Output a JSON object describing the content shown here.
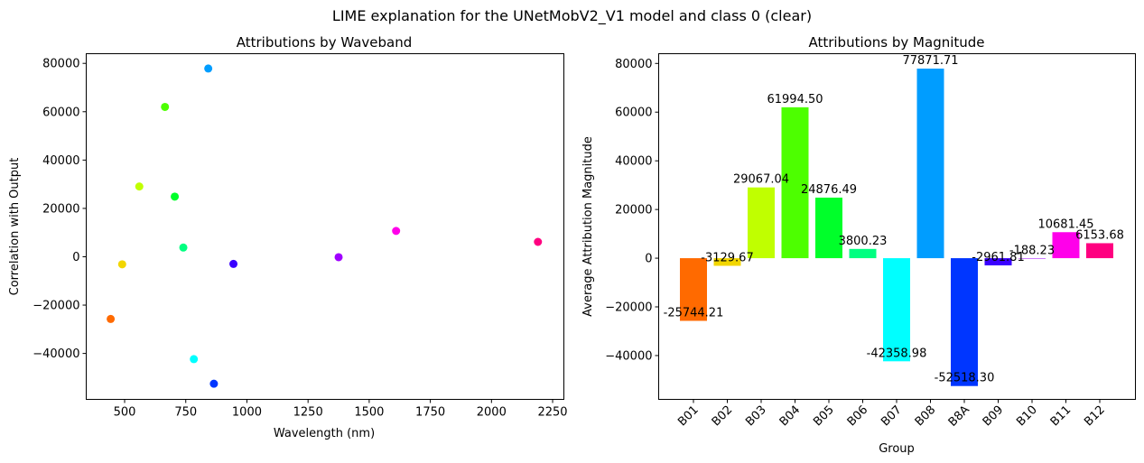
{
  "suptitle": "LIME explanation for the UNetMobV2_V1 model and class 0 (clear)",
  "chart_data": [
    {
      "type": "scatter",
      "title": "Attributions by Waveband",
      "xlabel": "Wavelength (nm)",
      "ylabel": "Correlation with Output",
      "xlim": [
        343,
        2296
      ],
      "ylim": [
        -59000,
        84000
      ],
      "xticks": [
        500,
        750,
        1000,
        1250,
        1500,
        1750,
        2000,
        2250
      ],
      "yticks": [
        -40000,
        -20000,
        0,
        20000,
        40000,
        60000,
        80000
      ],
      "grid": false,
      "points": [
        {
          "x": 443,
          "y": -25744.21,
          "color": "#ff6a00"
        },
        {
          "x": 490,
          "y": -3129.67,
          "color": "#f2d600"
        },
        {
          "x": 560,
          "y": 29067.04,
          "color": "#c0ff00"
        },
        {
          "x": 665,
          "y": 61994.5,
          "color": "#4dff00"
        },
        {
          "x": 705,
          "y": 24876.49,
          "color": "#00ff2a"
        },
        {
          "x": 740,
          "y": 3800.23,
          "color": "#00ff80"
        },
        {
          "x": 783,
          "y": -42358.98,
          "color": "#00ffff"
        },
        {
          "x": 842,
          "y": 77871.71,
          "color": "#009dff"
        },
        {
          "x": 865,
          "y": -52518.3,
          "color": "#0036ff"
        },
        {
          "x": 945,
          "y": -2961.81,
          "color": "#3a00ff"
        },
        {
          "x": 1375,
          "y": -188.23,
          "color": "#a000ff"
        },
        {
          "x": 1610,
          "y": 10681.45,
          "color": "#ff00ea"
        },
        {
          "x": 2190,
          "y": 6153.68,
          "color": "#ff0080"
        }
      ]
    },
    {
      "type": "bar",
      "title": "Attributions by Magnitude",
      "xlabel": "Group",
      "ylabel": "Average Attribution Magnitude",
      "ylim": [
        -58000,
        84000
      ],
      "yticks": [
        -40000,
        -20000,
        0,
        20000,
        40000,
        60000,
        80000
      ],
      "grid": false,
      "categories": [
        "B01",
        "B02",
        "B03",
        "B04",
        "B05",
        "B06",
        "B07",
        "B08",
        "B8A",
        "B09",
        "B10",
        "B11",
        "B12"
      ],
      "values": [
        -25744.21,
        -3129.67,
        29067.04,
        61994.5,
        24876.49,
        3800.23,
        -42358.98,
        77871.71,
        -52518.3,
        -2961.81,
        -188.23,
        10681.45,
        6153.68
      ],
      "labels": [
        "-25744.21",
        "-3129.67",
        "29067.04",
        "61994.50",
        "24876.49",
        "3800.23",
        "-42358.98",
        "77871.71",
        "-52518.30",
        "-2961.81",
        "-188.23",
        "10681.45",
        "6153.68"
      ],
      "colors": [
        "#ff6a00",
        "#f2d600",
        "#c0ff00",
        "#4dff00",
        "#00ff2a",
        "#00ff80",
        "#00ffff",
        "#009dff",
        "#0036ff",
        "#3a00ff",
        "#a000ff",
        "#ff00ea",
        "#ff0080"
      ]
    }
  ]
}
